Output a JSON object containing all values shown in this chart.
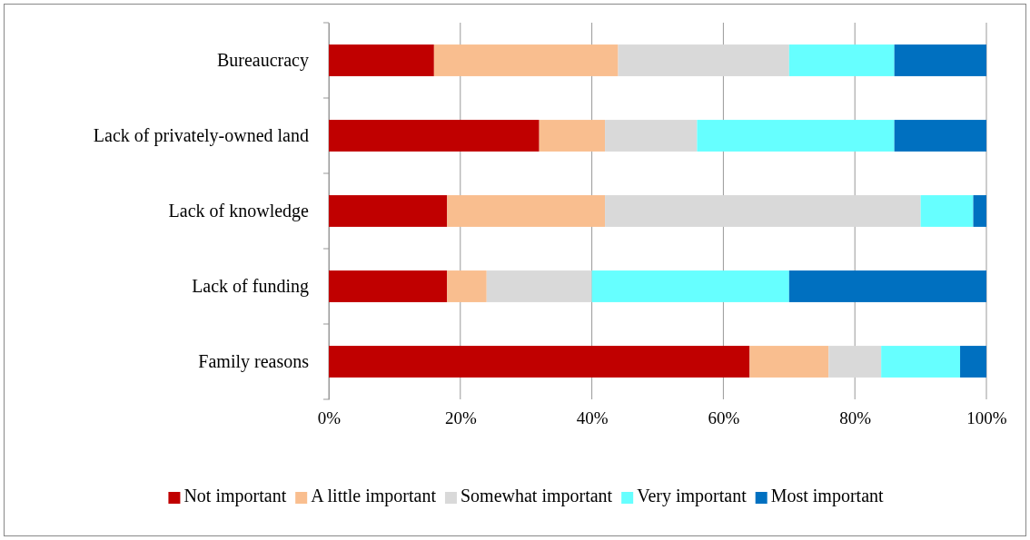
{
  "chart_data": {
    "type": "bar",
    "orientation": "horizontal",
    "stacked": true,
    "categories": [
      "Bureaucracy",
      "Lack of privately-owned land",
      "Lack of knowledge",
      "Lack of funding",
      "Family reasons"
    ],
    "series": [
      {
        "name": "Not important",
        "color": "#c00000",
        "values": [
          16,
          32,
          18,
          18,
          64
        ]
      },
      {
        "name": "A little important",
        "color": "#f9be8f",
        "values": [
          28,
          10,
          24,
          6,
          12
        ]
      },
      {
        "name": "Somewhat important",
        "color": "#d9d9d9",
        "values": [
          26,
          14,
          48,
          16,
          8
        ]
      },
      {
        "name": "Very important",
        "color": "#66ffff",
        "values": [
          16,
          30,
          8,
          30,
          12
        ]
      },
      {
        "name": "Most important",
        "color": "#0070c0",
        "values": [
          14,
          14,
          2,
          30,
          4
        ]
      }
    ],
    "xlim": [
      0,
      100
    ],
    "xticks": [
      {
        "value": 0,
        "label": "0%"
      },
      {
        "value": 20,
        "label": "20%"
      },
      {
        "value": 40,
        "label": "40%"
      },
      {
        "value": 60,
        "label": "60%"
      },
      {
        "value": 80,
        "label": "80%"
      },
      {
        "value": 100,
        "label": "100%"
      }
    ],
    "grid": "x",
    "legend": "bottom"
  }
}
